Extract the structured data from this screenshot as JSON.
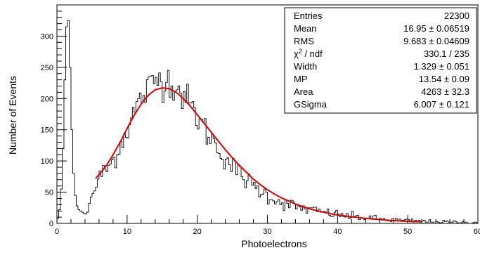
{
  "chart_data": {
    "type": "histogram",
    "xlabel": "Photoelectrons",
    "ylabel": "Number of Events",
    "xlim": [
      0,
      60
    ],
    "ylim": [
      0,
      350
    ],
    "x_ticks": [
      0,
      10,
      20,
      30,
      40,
      50,
      60
    ],
    "y_ticks": [
      0,
      50,
      100,
      150,
      200,
      250,
      300
    ],
    "x_minor_step": 2,
    "y_minor_step": 10,
    "bin_width": 0.25,
    "legend_position": "top-right",
    "histogram_color": "#000000",
    "fit_color": "#dd0000",
    "pedestal_bins": [
      [
        0.0,
        8
      ],
      [
        0.25,
        22
      ],
      [
        0.5,
        55
      ],
      [
        0.75,
        120
      ],
      [
        1.0,
        230
      ],
      [
        1.25,
        315
      ],
      [
        1.5,
        325
      ],
      [
        1.75,
        250
      ],
      [
        2.0,
        150
      ],
      [
        2.25,
        80
      ],
      [
        2.5,
        45
      ],
      [
        2.75,
        28
      ],
      [
        3.0,
        22
      ],
      [
        3.25,
        20
      ],
      [
        3.5,
        18
      ],
      [
        3.75,
        16
      ],
      [
        4.0,
        15
      ],
      [
        4.25,
        18
      ],
      [
        4.5,
        32
      ],
      [
        4.75,
        42
      ],
      [
        5.0,
        48
      ],
      [
        5.25,
        52
      ],
      [
        5.5,
        58
      ]
    ],
    "histogram_envelope": [
      [
        5.5,
        70
      ],
      [
        6,
        75
      ],
      [
        7,
        85
      ],
      [
        8,
        100
      ],
      [
        9,
        125
      ],
      [
        10,
        150
      ],
      [
        11,
        178
      ],
      [
        12,
        200
      ],
      [
        13,
        215
      ],
      [
        14,
        230
      ],
      [
        15,
        232
      ],
      [
        16,
        228
      ],
      [
        17,
        220
      ],
      [
        18,
        205
      ],
      [
        19,
        190
      ],
      [
        20,
        170
      ],
      [
        21,
        152
      ],
      [
        22,
        136
      ],
      [
        23,
        120
      ],
      [
        24,
        105
      ],
      [
        25,
        92
      ],
      [
        26,
        80
      ],
      [
        27,
        70
      ],
      [
        28,
        60
      ],
      [
        29,
        52
      ],
      [
        30,
        45
      ],
      [
        31,
        39
      ],
      [
        32,
        34
      ],
      [
        33,
        30
      ],
      [
        34,
        27
      ],
      [
        35,
        24
      ],
      [
        36,
        22
      ],
      [
        37,
        20
      ],
      [
        38,
        18
      ],
      [
        39,
        16
      ],
      [
        40,
        14
      ],
      [
        42,
        11
      ],
      [
        44,
        9
      ],
      [
        46,
        7
      ],
      [
        48,
        5.5
      ],
      [
        50,
        4
      ],
      [
        52,
        3
      ],
      [
        54,
        2.5
      ],
      [
        56,
        2
      ],
      [
        58,
        1.5
      ],
      [
        60,
        1.2
      ]
    ],
    "fit_points": [
      [
        5.5,
        72
      ],
      [
        6,
        78
      ],
      [
        7,
        92
      ],
      [
        8,
        110
      ],
      [
        9,
        130
      ],
      [
        10,
        152
      ],
      [
        11,
        173
      ],
      [
        12,
        191
      ],
      [
        13,
        205
      ],
      [
        14,
        214
      ],
      [
        15,
        217
      ],
      [
        16,
        216
      ],
      [
        17,
        210
      ],
      [
        18,
        200
      ],
      [
        19,
        188
      ],
      [
        20,
        174
      ],
      [
        21,
        160
      ],
      [
        22,
        146
      ],
      [
        23,
        132
      ],
      [
        24,
        118
      ],
      [
        25,
        105
      ],
      [
        26,
        93
      ],
      [
        27,
        82
      ],
      [
        28,
        71
      ],
      [
        29,
        62
      ],
      [
        30,
        54
      ],
      [
        31,
        47
      ],
      [
        32,
        41
      ],
      [
        33,
        36
      ],
      [
        34,
        31
      ],
      [
        35,
        27
      ],
      [
        36,
        23.5
      ],
      [
        37,
        20.5
      ],
      [
        38,
        18
      ],
      [
        39,
        15.5
      ],
      [
        40,
        13.5
      ],
      [
        42,
        10.5
      ],
      [
        44,
        8
      ],
      [
        46,
        6
      ],
      [
        48,
        4.5
      ],
      [
        50,
        3.3
      ],
      [
        52,
        2.5
      ]
    ],
    "stats_box": [
      {
        "name": "Entries",
        "value": "22300"
      },
      {
        "name": "Mean",
        "value": "16.95 ± 0.06519"
      },
      {
        "name": "RMS",
        "value": "9.683 ± 0.04609"
      },
      {
        "name": "χ2 / ndf",
        "value": "330.1 / 235"
      },
      {
        "name": "Width",
        "value": "1.329 ± 0.051"
      },
      {
        "name": "MP",
        "value": "13.54 ± 0.09"
      },
      {
        "name": "Area",
        "value": "4263 ± 32.3"
      },
      {
        "name": "GSigma",
        "value": "6.007 ± 0.121"
      }
    ]
  }
}
